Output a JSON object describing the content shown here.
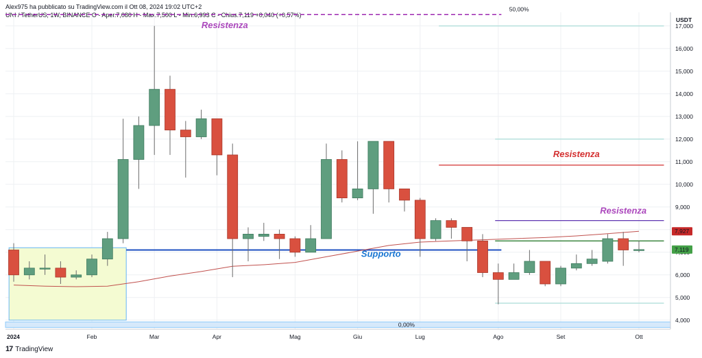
{
  "header": {
    "publisher_line": "Alex975 ha pubblicato su TradingView.com il Ott 08, 2024 19:02 UTC+2",
    "symbol_line": "UNI / TetherUS, 1W, BINANCE  O - Aper.7,080  H - Max.7,500  L - Min.6,993  C - Chius.7,119  +0,040 (+0,57%)"
  },
  "brand": {
    "logo": "17",
    "name": "TradingView"
  },
  "chart_data": {
    "type": "candlestick",
    "currency": "USDT",
    "ylim": [
      3.6,
      17.6
    ],
    "yticks": [
      4,
      5,
      6,
      7,
      8,
      9,
      10,
      11,
      12,
      13,
      14,
      15,
      16,
      17
    ],
    "ytick_labels": [
      "4,000",
      "5,000",
      "6,000",
      "7,000",
      "8,000",
      "9,000",
      "10,000",
      "11,000",
      "12,000",
      "13,000",
      "14,000",
      "15,000",
      "16,000",
      "17,000"
    ],
    "xtick_labels": [
      {
        "label": "2024",
        "index": 0
      },
      {
        "label": "Feb",
        "index": 5
      },
      {
        "label": "Mar",
        "index": 9
      },
      {
        "label": "Apr",
        "index": 13
      },
      {
        "label": "Mag",
        "index": 18
      },
      {
        "label": "Giu",
        "index": 22
      },
      {
        "label": "Lug",
        "index": 26
      },
      {
        "label": "Ago",
        "index": 31
      },
      {
        "label": "Set",
        "index": 35
      },
      {
        "label": "Ott",
        "index": 40
      }
    ],
    "candles": [
      {
        "o": 7.1,
        "h": 7.4,
        "l": 5.7,
        "c": 6.0
      },
      {
        "o": 6.0,
        "h": 6.6,
        "l": 5.8,
        "c": 6.3
      },
      {
        "o": 6.3,
        "h": 6.9,
        "l": 6.0,
        "c": 6.3
      },
      {
        "o": 6.3,
        "h": 6.6,
        "l": 5.6,
        "c": 5.9
      },
      {
        "o": 5.9,
        "h": 6.2,
        "l": 5.8,
        "c": 6.0
      },
      {
        "o": 6.0,
        "h": 6.9,
        "l": 5.9,
        "c": 6.7
      },
      {
        "o": 6.7,
        "h": 7.9,
        "l": 6.4,
        "c": 7.6
      },
      {
        "o": 7.6,
        "h": 12.9,
        "l": 7.4,
        "c": 11.1
      },
      {
        "o": 11.1,
        "h": 13.0,
        "l": 9.8,
        "c": 12.6
      },
      {
        "o": 12.6,
        "h": 17.0,
        "l": 11.3,
        "c": 14.2
      },
      {
        "o": 14.2,
        "h": 14.8,
        "l": 11.3,
        "c": 12.4
      },
      {
        "o": 12.4,
        "h": 12.8,
        "l": 10.3,
        "c": 12.1
      },
      {
        "o": 12.1,
        "h": 13.3,
        "l": 12.0,
        "c": 12.9
      },
      {
        "o": 12.9,
        "h": 12.9,
        "l": 10.4,
        "c": 11.3
      },
      {
        "o": 11.3,
        "h": 11.8,
        "l": 5.9,
        "c": 7.6
      },
      {
        "o": 7.6,
        "h": 8.1,
        "l": 6.6,
        "c": 7.8
      },
      {
        "o": 7.7,
        "h": 8.3,
        "l": 7.5,
        "c": 7.8
      },
      {
        "o": 7.8,
        "h": 8.0,
        "l": 6.7,
        "c": 7.6
      },
      {
        "o": 7.6,
        "h": 7.7,
        "l": 6.8,
        "c": 7.0
      },
      {
        "o": 7.0,
        "h": 8.2,
        "l": 7.0,
        "c": 7.6
      },
      {
        "o": 7.6,
        "h": 11.8,
        "l": 7.6,
        "c": 11.1
      },
      {
        "o": 11.1,
        "h": 11.5,
        "l": 9.2,
        "c": 9.4
      },
      {
        "o": 9.4,
        "h": 11.9,
        "l": 9.3,
        "c": 9.8
      },
      {
        "o": 9.8,
        "h": 11.9,
        "l": 8.7,
        "c": 11.9
      },
      {
        "o": 11.9,
        "h": 11.9,
        "l": 9.2,
        "c": 9.8
      },
      {
        "o": 9.8,
        "h": 9.8,
        "l": 8.8,
        "c": 9.3
      },
      {
        "o": 9.3,
        "h": 9.4,
        "l": 6.8,
        "c": 7.6
      },
      {
        "o": 7.6,
        "h": 8.5,
        "l": 7.5,
        "c": 8.4
      },
      {
        "o": 8.4,
        "h": 8.5,
        "l": 7.6,
        "c": 8.1
      },
      {
        "o": 8.1,
        "h": 8.1,
        "l": 6.6,
        "c": 7.5
      },
      {
        "o": 7.5,
        "h": 7.8,
        "l": 5.9,
        "c": 6.1
      },
      {
        "o": 6.1,
        "h": 6.5,
        "l": 4.7,
        "c": 5.8
      },
      {
        "o": 5.8,
        "h": 6.5,
        "l": 5.8,
        "c": 6.1
      },
      {
        "o": 6.1,
        "h": 7.1,
        "l": 6.0,
        "c": 6.6
      },
      {
        "o": 6.6,
        "h": 6.6,
        "l": 5.5,
        "c": 5.6
      },
      {
        "o": 5.6,
        "h": 6.4,
        "l": 5.5,
        "c": 6.3
      },
      {
        "o": 6.3,
        "h": 6.9,
        "l": 6.2,
        "c": 6.5
      },
      {
        "o": 6.5,
        "h": 7.1,
        "l": 6.4,
        "c": 6.7
      },
      {
        "o": 6.6,
        "h": 7.8,
        "l": 6.5,
        "c": 7.6
      },
      {
        "o": 7.6,
        "h": 7.9,
        "l": 6.4,
        "c": 7.1
      },
      {
        "o": 7.08,
        "h": 7.5,
        "l": 6.993,
        "c": 7.119
      }
    ],
    "moving_average": [
      {
        "i": 0,
        "v": 5.55
      },
      {
        "i": 2,
        "v": 5.5
      },
      {
        "i": 4,
        "v": 5.48
      },
      {
        "i": 6,
        "v": 5.5
      },
      {
        "i": 8,
        "v": 5.7
      },
      {
        "i": 10,
        "v": 5.95
      },
      {
        "i": 12,
        "v": 6.15
      },
      {
        "i": 14,
        "v": 6.38
      },
      {
        "i": 16,
        "v": 6.45
      },
      {
        "i": 18,
        "v": 6.55
      },
      {
        "i": 20,
        "v": 6.8
      },
      {
        "i": 22,
        "v": 7.05
      },
      {
        "i": 24,
        "v": 7.3
      },
      {
        "i": 26,
        "v": 7.45
      },
      {
        "i": 28,
        "v": 7.5
      },
      {
        "i": 30,
        "v": 7.55
      },
      {
        "i": 32,
        "v": 7.6
      },
      {
        "i": 34,
        "v": 7.65
      },
      {
        "i": 36,
        "v": 7.72
      },
      {
        "i": 38,
        "v": 7.82
      },
      {
        "i": 40,
        "v": 7.927
      }
    ],
    "price_badges": [
      {
        "value": 7.927,
        "label": "7,927",
        "color": "#c62828"
      },
      {
        "value": 7.119,
        "label": "7,119",
        "color": "#43a047"
      }
    ],
    "fib_levels": [
      {
        "value": 17.5,
        "label": "50,00%",
        "color": "#9c27b0",
        "style": "dashed"
      },
      {
        "value": 3.8,
        "label": "0,00%",
        "color": "#90caf9",
        "style": "band"
      }
    ],
    "lines": [
      {
        "name": "Supporto",
        "value": 7.1,
        "from": 7.2,
        "to": 31.2,
        "color": "#1e4fc2"
      },
      {
        "name": "Resistenza",
        "value": 10.85,
        "from": 27.2,
        "to": 41.6,
        "color": "#d32f2f"
      },
      {
        "name": "Resistenza",
        "value": 8.4,
        "from": 30.8,
        "to": 41.6,
        "color": "#5e35b1"
      },
      {
        "name": "",
        "value": 7.5,
        "from": 30.8,
        "to": 41.6,
        "color": "#2e7d32"
      },
      {
        "name": "",
        "value": 17.0,
        "from": 27.2,
        "to": 41.6,
        "color": "#b2dfdb"
      },
      {
        "name": "",
        "value": 12.0,
        "from": 30.8,
        "to": 41.6,
        "color": "#b2dfdb"
      },
      {
        "name": "",
        "value": 4.75,
        "from": 30.8,
        "to": 41.6,
        "color": "#b2dfdb"
      }
    ],
    "annotations": [
      {
        "text": "Resistenza",
        "color": "#ab47bc",
        "x": 13.5,
        "y": 16.9
      },
      {
        "text": "Resistenza",
        "color": "#d32f2f",
        "x": 36.0,
        "y": 11.2
      },
      {
        "text": "Resistenza",
        "color": "#ab47bc",
        "x": 39.0,
        "y": 8.7
      },
      {
        "text": "Supporto",
        "color": "#1976d2",
        "x": 23.5,
        "y": 6.8
      }
    ],
    "range_box": {
      "x0": -0.3,
      "x1": 7.2,
      "y0": 4.0,
      "y1": 7.2,
      "fill": "#f4fbd2",
      "stroke": "#64b5f6"
    },
    "colors": {
      "up": "#5f9e7f",
      "down": "#d9503f",
      "wick": "#6b6b6b",
      "ma": "#c0504d",
      "grid": "#eef0f3"
    }
  }
}
